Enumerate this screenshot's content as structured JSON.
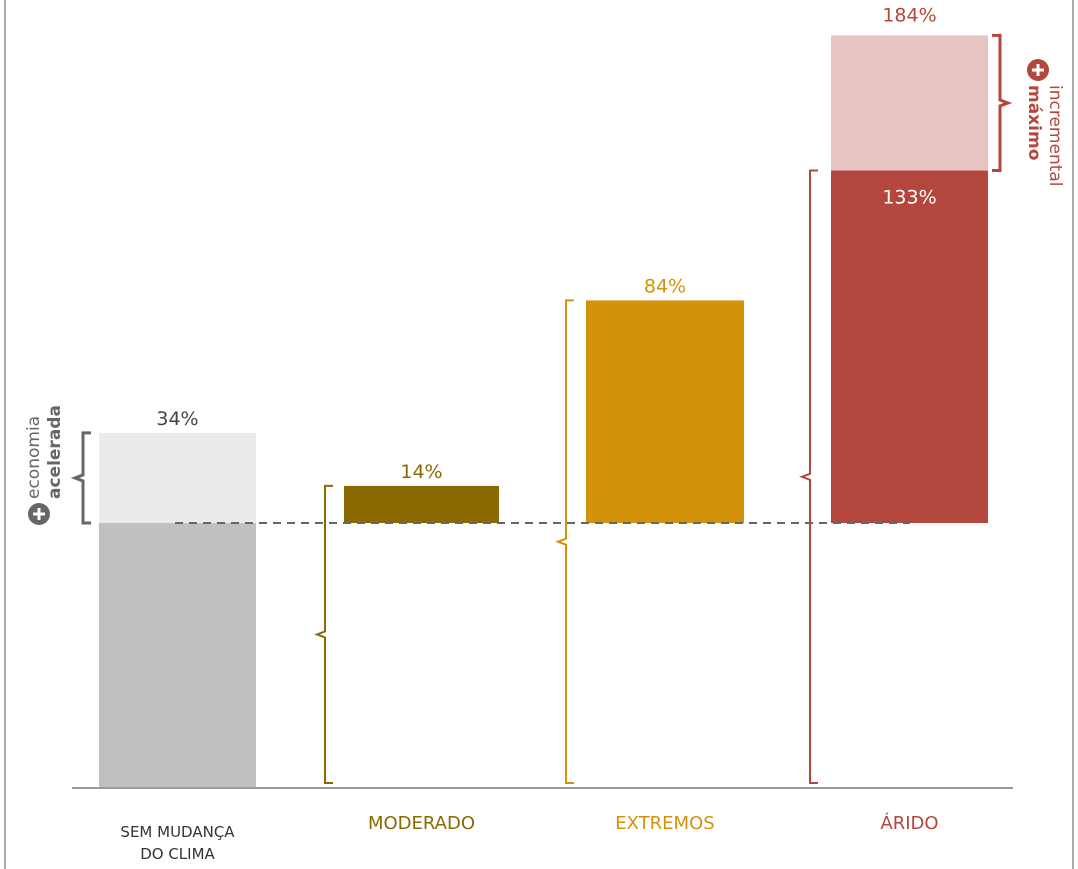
{
  "chart_data": {
    "type": "bar",
    "categories": [
      {
        "lines": [
          "SEM MUDANÇA",
          "DO CLIMA"
        ],
        "color": "#333333"
      },
      {
        "lines": [
          "MODERADO"
        ],
        "color": "#8a6a00"
      },
      {
        "lines": [
          "EXTREMOS"
        ],
        "color": "#d2930a"
      },
      {
        "lines": [
          "ÁRIDO"
        ],
        "color": "#b3473d"
      }
    ],
    "series": [
      {
        "values": [
          34,
          14,
          84,
          133
        ],
        "labels": [
          "34%",
          "14%",
          "84%",
          "133%"
        ],
        "colors": [
          "#ebebeb",
          "#8a6a00",
          "#d2930a",
          "#b3473d"
        ]
      }
    ],
    "increment": {
      "category_index": 3,
      "from": 133,
      "to": 184,
      "label": "184%",
      "color": "#e6c4c1"
    },
    "baseline_bar": {
      "category_index": 0,
      "color": "#c0c0c0"
    },
    "label_colors": [
      "#444444",
      "#8a6a00",
      "#d2930a",
      "#b3473d"
    ],
    "inner_label_color": "#ffffff",
    "side_annotations": {
      "left": {
        "lines": [
          "economia",
          "acelerada"
        ],
        "bold_line": 1,
        "color": "#666666"
      },
      "right": {
        "lines": [
          "incremental",
          "máximo"
        ],
        "bold_line": 1,
        "color": "#b3473d"
      }
    },
    "ylim": [
      -100,
      184
    ],
    "axis_color": "#999999",
    "reference_line": {
      "value": 0,
      "style": "dashed",
      "color": "#666666"
    },
    "title": "",
    "xlabel": "",
    "ylabel": ""
  }
}
